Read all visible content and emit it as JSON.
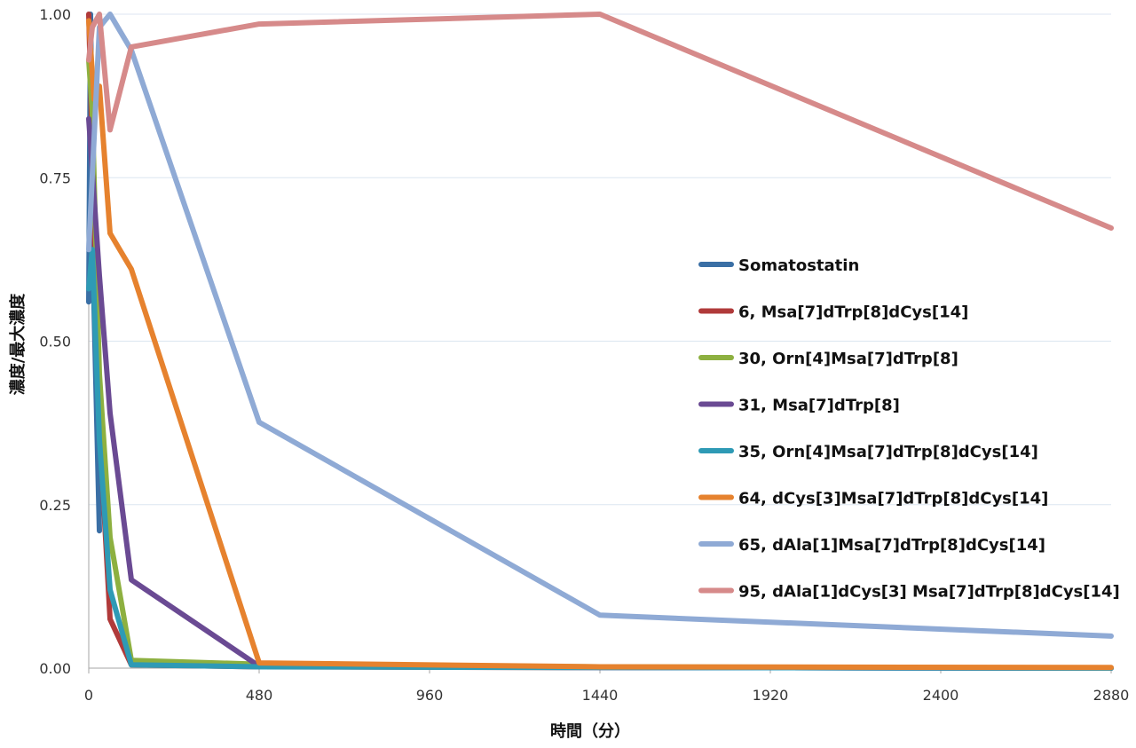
{
  "chart_data": {
    "type": "line",
    "title": "",
    "xlabel": "時間（分）",
    "ylabel": "濃度/最大濃度",
    "xlim": [
      0,
      2880
    ],
    "ylim": [
      0,
      1
    ],
    "x_ticks": [
      0,
      480,
      960,
      1440,
      1920,
      2400,
      2880
    ],
    "x_tick_labels": [
      "0",
      "480",
      "960",
      "1440",
      "1920",
      "2400",
      "2880"
    ],
    "y_ticks": [
      0,
      0.25,
      0.5,
      0.75,
      1
    ],
    "y_tick_labels": [
      "0.00",
      "0.25",
      "0.50",
      "0.75",
      "1.00"
    ],
    "grid": "horizontal",
    "legend_position": "right",
    "series": [
      {
        "name": "Somatostatin",
        "color": "#3A6FA5",
        "points": [
          [
            0,
            0.56
          ],
          [
            5,
            1.0
          ],
          [
            15,
            0.55
          ],
          [
            30,
            0.21
          ]
        ]
      },
      {
        "name": "6, Msa[7]dTrp[8]dCys[14]",
        "color": "#B03A3A",
        "points": [
          [
            0,
            1.0
          ],
          [
            30,
            0.37
          ],
          [
            60,
            0.075
          ],
          [
            120,
            0.005
          ],
          [
            480,
            0.002
          ],
          [
            1440,
            0.001
          ],
          [
            2880,
            0.0
          ]
        ]
      },
      {
        "name": "30, Orn[4]Msa[7]dTrp[8]",
        "color": "#8DB040",
        "points": [
          [
            0,
            0.93
          ],
          [
            10,
            0.85
          ],
          [
            30,
            0.45
          ],
          [
            60,
            0.2
          ],
          [
            120,
            0.012
          ],
          [
            480,
            0.006
          ],
          [
            1440,
            0.002
          ],
          [
            2880,
            0.0
          ]
        ]
      },
      {
        "name": "31, Msa[7]dTrp[8]",
        "color": "#6A4A93",
        "points": [
          [
            0,
            0.84
          ],
          [
            30,
            0.6
          ],
          [
            60,
            0.39
          ],
          [
            120,
            0.135
          ],
          [
            480,
            0.003
          ],
          [
            1440,
            0.001
          ],
          [
            2880,
            0.0
          ]
        ]
      },
      {
        "name": "35, Orn[4]Msa[7]dTrp[8]dCys[14]",
        "color": "#2E9AB5",
        "points": [
          [
            0,
            0.58
          ],
          [
            10,
            0.64
          ],
          [
            30,
            0.35
          ],
          [
            60,
            0.12
          ],
          [
            120,
            0.005
          ],
          [
            480,
            0.002
          ],
          [
            1440,
            0.001
          ],
          [
            2880,
            0.0
          ]
        ]
      },
      {
        "name": "64, dCys[3]Msa[7]dTrp[8]dCys[14]",
        "color": "#E6822E",
        "points": [
          [
            0,
            0.99
          ],
          [
            15,
            0.87
          ],
          [
            30,
            0.89
          ],
          [
            60,
            0.665
          ],
          [
            120,
            0.61
          ],
          [
            480,
            0.008
          ],
          [
            1440,
            0.002
          ],
          [
            2880,
            0.001
          ]
        ]
      },
      {
        "name": "65, dAla[1]Msa[7]dTrp[8]dCys[14]",
        "color": "#8FAAD5",
        "points": [
          [
            0,
            0.64
          ],
          [
            30,
            0.98
          ],
          [
            60,
            1.0
          ],
          [
            120,
            0.945
          ],
          [
            480,
            0.376
          ],
          [
            1440,
            0.081
          ],
          [
            2880,
            0.049
          ]
        ]
      },
      {
        "name": "95, dAla[1]dCys[3] Msa[7]dTrp[8]dCys[14]",
        "color": "#D68A8A",
        "points": [
          [
            0,
            0.93
          ],
          [
            10,
            0.98
          ],
          [
            30,
            1.0
          ],
          [
            60,
            0.823
          ],
          [
            120,
            0.95
          ],
          [
            480,
            0.985
          ],
          [
            1440,
            1.0
          ],
          [
            2880,
            0.673
          ]
        ]
      }
    ]
  }
}
